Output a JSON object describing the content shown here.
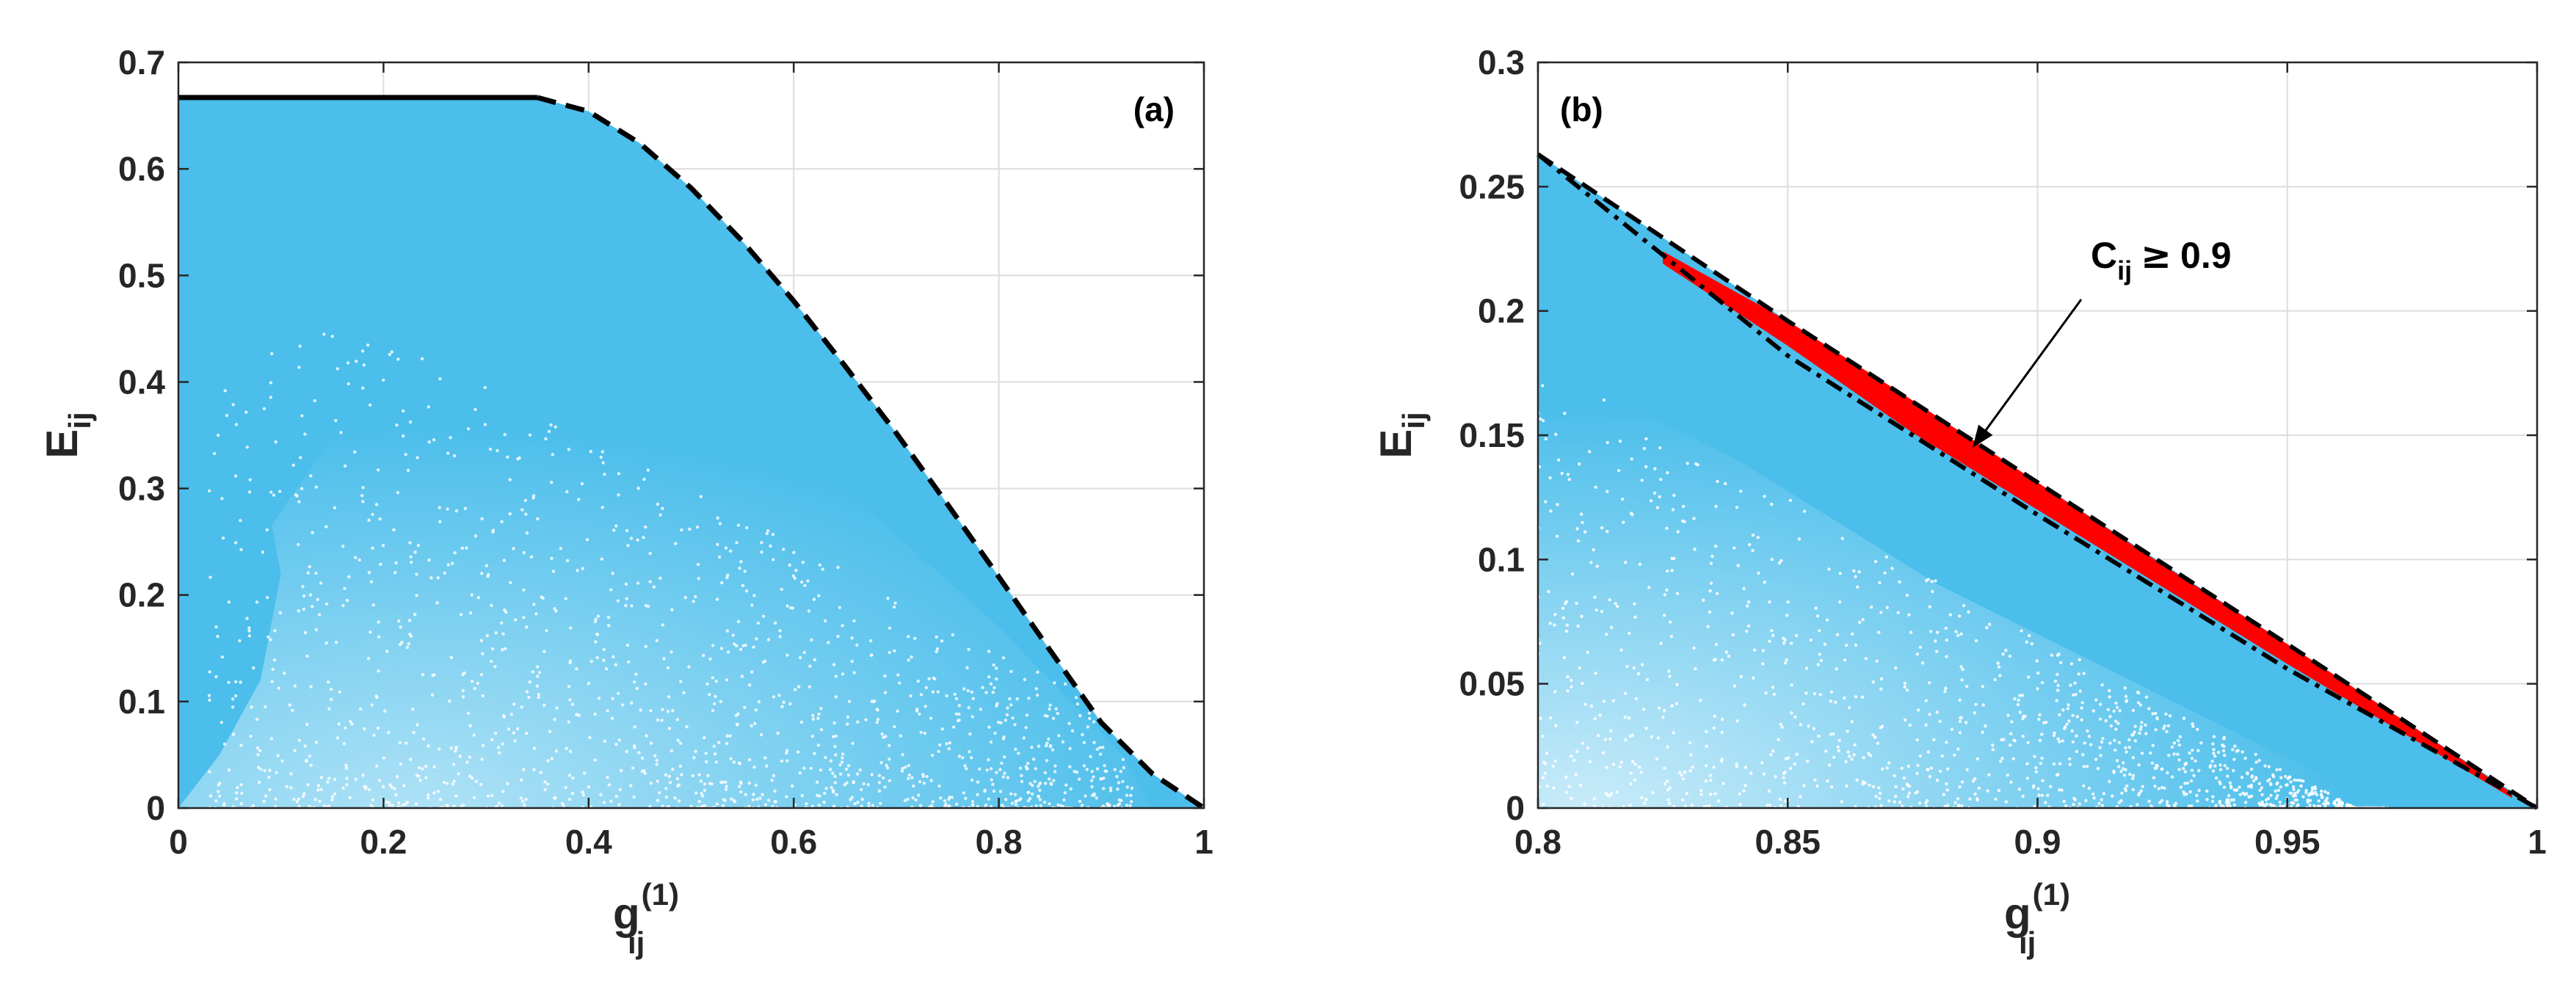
{
  "chart_data": [
    {
      "type": "scatter",
      "panel_label": "(a)",
      "xlim": [
        0,
        1
      ],
      "ylim": [
        0,
        0.7
      ],
      "xticks": [
        "0",
        "0.2",
        "0.4",
        "0.6",
        "0.8",
        "1"
      ],
      "yticks": [
        "0",
        "0.1",
        "0.2",
        "0.3",
        "0.4",
        "0.5",
        "0.6",
        "0.7"
      ],
      "xticks_values": [
        0,
        0.2,
        0.4,
        0.6,
        0.8,
        1
      ],
      "yticks_values": [
        0,
        0.1,
        0.2,
        0.3,
        0.4,
        0.5,
        0.6,
        0.7
      ],
      "xlabel": {
        "base": "g",
        "sub": "ij",
        "sup": "(1)"
      },
      "ylabel": {
        "base": "E",
        "sub": "ij"
      },
      "grid": true,
      "colors": {
        "scatter": "#4BBEEB",
        "boundary": "#000000"
      },
      "scatter_upper_boundary": {
        "x": [
          0,
          0.35,
          0.4,
          0.45,
          0.5,
          0.55,
          0.6,
          0.65,
          0.7,
          0.75,
          0.8,
          0.85,
          0.9,
          0.95,
          1.0
        ],
        "y": [
          0.667,
          0.667,
          0.654,
          0.624,
          0.582,
          0.532,
          0.476,
          0.415,
          0.352,
          0.285,
          0.217,
          0.148,
          0.08,
          0.032,
          0.0
        ]
      },
      "boundary_solid": {
        "x": [
          0,
          0.35
        ],
        "y": [
          0.667,
          0.667
        ]
      },
      "boundary_dashed": {
        "x": [
          0.35,
          0.4,
          0.45,
          0.5,
          0.55,
          0.6,
          0.65,
          0.7,
          0.75,
          0.8,
          0.85,
          0.9,
          0.95,
          1.0
        ],
        "y": [
          0.667,
          0.654,
          0.624,
          0.582,
          0.532,
          0.476,
          0.415,
          0.352,
          0.285,
          0.217,
          0.148,
          0.08,
          0.032,
          0.0
        ]
      }
    },
    {
      "type": "scatter",
      "panel_label": "(b)",
      "xlim": [
        0.8,
        1
      ],
      "ylim": [
        0,
        0.3
      ],
      "xticks": [
        "0.8",
        "0.85",
        "0.9",
        "0.95",
        "1"
      ],
      "yticks": [
        "0",
        "0.05",
        "0.1",
        "0.15",
        "0.2",
        "0.25",
        "0.3"
      ],
      "xticks_values": [
        0.8,
        0.85,
        0.9,
        0.95,
        1.0
      ],
      "yticks_values": [
        0,
        0.05,
        0.1,
        0.15,
        0.2,
        0.25,
        0.3
      ],
      "xlabel": {
        "base": "g",
        "sub": "ij",
        "sup": "(1)"
      },
      "ylabel": {
        "base": "E",
        "sub": "ij"
      },
      "grid": true,
      "colors": {
        "scatter": "#4BBEEB",
        "highlight": "#FF0000",
        "boundary": "#000000"
      },
      "annotation": {
        "base": "C",
        "sub": "ij",
        "symbol": "≥",
        "value": "0.9",
        "arrow_to": [
          0.887,
          0.145
        ]
      },
      "upper_dashed": {
        "x": [
          0.8,
          0.85,
          0.9,
          0.95,
          1.0
        ],
        "y": [
          0.263,
          0.196,
          0.131,
          0.066,
          0.0
        ]
      },
      "lower_dashdot": {
        "x": [
          0.8,
          0.85,
          0.9,
          0.95,
          1.0
        ],
        "y": [
          0.263,
          0.182,
          0.118,
          0.056,
          0.0
        ]
      },
      "highlight_band": {
        "x": [
          0.825,
          0.85,
          0.875,
          0.9,
          0.925,
          0.95,
          0.975,
          0.995
        ],
        "y_upper": [
          0.224,
          0.196,
          0.164,
          0.131,
          0.098,
          0.066,
          0.033,
          0.006
        ],
        "y_lower": [
          0.219,
          0.186,
          0.151,
          0.12,
          0.089,
          0.058,
          0.028,
          0.004
        ]
      }
    }
  ]
}
